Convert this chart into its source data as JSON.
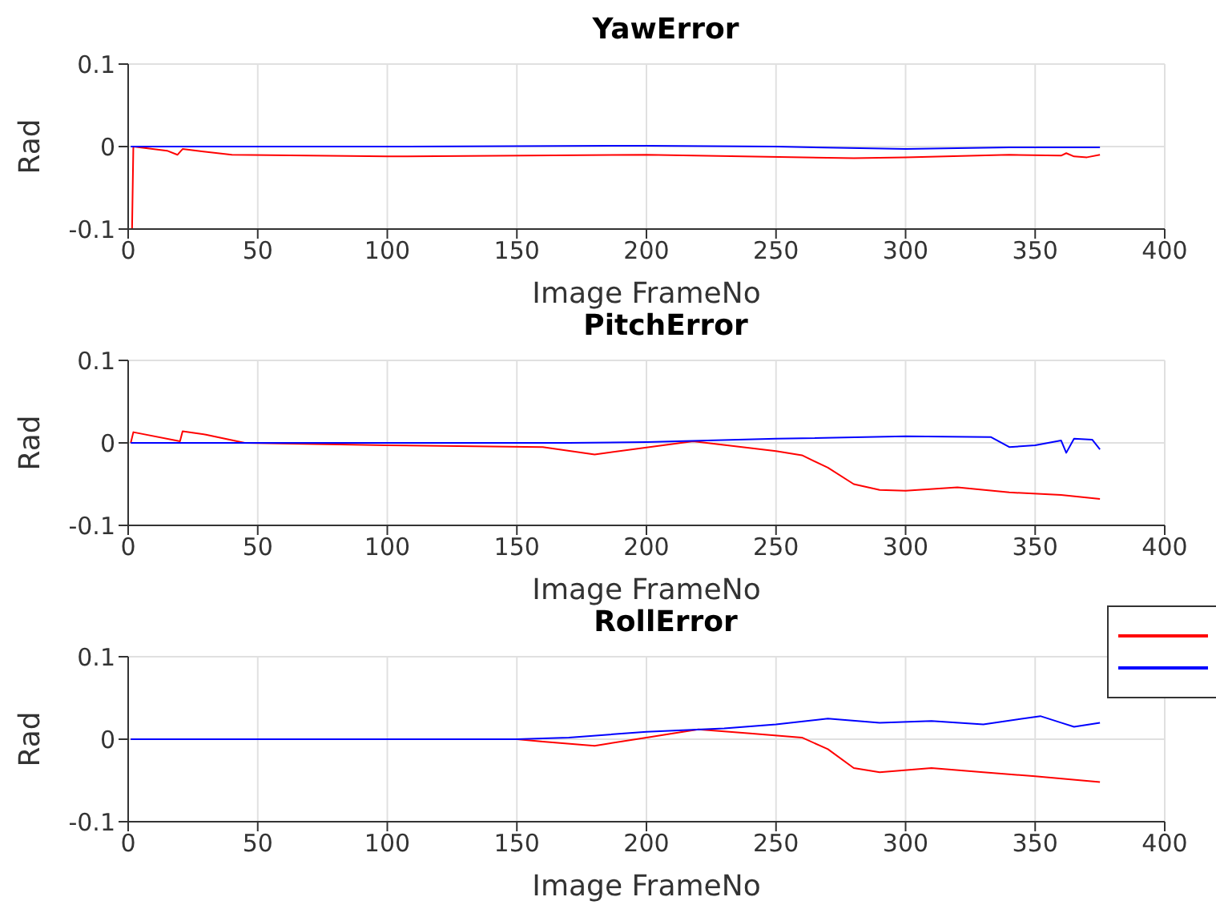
{
  "chart_data": [
    {
      "type": "line",
      "title": "YawError",
      "xlabel": "Image FrameNo",
      "ylabel": "Rad",
      "xlim": [
        0,
        400
      ],
      "xticks": [
        0,
        50,
        100,
        150,
        200,
        250,
        300,
        350,
        400
      ],
      "ylim": [
        -0.1,
        0.1
      ],
      "yticks": [
        -0.1,
        0,
        0.1
      ],
      "grid": true,
      "series": [
        {
          "color": "#ff0000",
          "x": [
            1,
            1.5,
            2,
            15,
            19,
            21,
            40,
            100,
            200,
            280,
            300,
            340,
            360,
            362,
            365,
            370,
            375
          ],
          "values": [
            -0.1,
            -0.1,
            0,
            -0.005,
            -0.01,
            -0.003,
            -0.01,
            -0.012,
            -0.01,
            -0.014,
            -0.013,
            -0.01,
            -0.011,
            -0.008,
            -0.012,
            -0.013,
            -0.01
          ]
        },
        {
          "color": "#0000ff",
          "x": [
            1,
            100,
            200,
            250,
            300,
            340,
            375
          ],
          "values": [
            0,
            0,
            0.001,
            0,
            -0.003,
            -0.001,
            -0.001
          ]
        }
      ]
    },
    {
      "type": "line",
      "title": "PitchError",
      "xlabel": "Image FrameNo",
      "ylabel": "Rad",
      "xlim": [
        0,
        400
      ],
      "xticks": [
        0,
        50,
        100,
        150,
        200,
        250,
        300,
        350,
        400
      ],
      "ylim": [
        -0.1,
        0.1
      ],
      "yticks": [
        -0.1,
        0,
        0.1
      ],
      "grid": true,
      "series": [
        {
          "color": "#ff0000",
          "x": [
            1,
            2,
            20,
            21,
            30,
            45,
            100,
            160,
            180,
            218,
            250,
            260,
            270,
            280,
            290,
            300,
            320,
            340,
            360,
            375
          ],
          "values": [
            0,
            0.013,
            0.002,
            0.014,
            0.01,
            0,
            -0.003,
            -0.005,
            -0.014,
            0.002,
            -0.01,
            -0.015,
            -0.03,
            -0.05,
            -0.057,
            -0.058,
            -0.054,
            -0.06,
            -0.063,
            -0.068
          ]
        },
        {
          "color": "#0000ff",
          "x": [
            1,
            170,
            200,
            250,
            300,
            333,
            340,
            350,
            360,
            362,
            365,
            372,
            375
          ],
          "values": [
            0,
            0,
            0.001,
            0.005,
            0.008,
            0.007,
            -0.005,
            -0.003,
            0.003,
            -0.012,
            0.005,
            0.004,
            -0.008
          ]
        }
      ]
    },
    {
      "type": "line",
      "title": "RollError",
      "xlabel": "Image FrameNo",
      "ylabel": "Rad",
      "xlim": [
        0,
        400
      ],
      "xticks": [
        0,
        50,
        100,
        150,
        200,
        250,
        300,
        350,
        400
      ],
      "ylim": [
        -0.1,
        0.1
      ],
      "yticks": [
        -0.1,
        0,
        0.1
      ],
      "grid": true,
      "series": [
        {
          "color": "#ff0000",
          "x": [
            1,
            150,
            160,
            180,
            200,
            220,
            240,
            260,
            270,
            280,
            290,
            310,
            330,
            350,
            375
          ],
          "values": [
            0,
            0,
            -0.003,
            -0.008,
            0.002,
            0.012,
            0.007,
            0.002,
            -0.012,
            -0.035,
            -0.04,
            -0.035,
            -0.04,
            -0.045,
            -0.052
          ]
        },
        {
          "color": "#0000ff",
          "x": [
            1,
            150,
            170,
            200,
            230,
            250,
            270,
            290,
            310,
            330,
            352,
            360,
            365,
            375
          ],
          "values": [
            0,
            0,
            0.002,
            0.009,
            0.013,
            0.018,
            0.025,
            0.02,
            0.022,
            0.018,
            0.028,
            0.02,
            0.015,
            0.02
          ]
        }
      ]
    }
  ]
}
